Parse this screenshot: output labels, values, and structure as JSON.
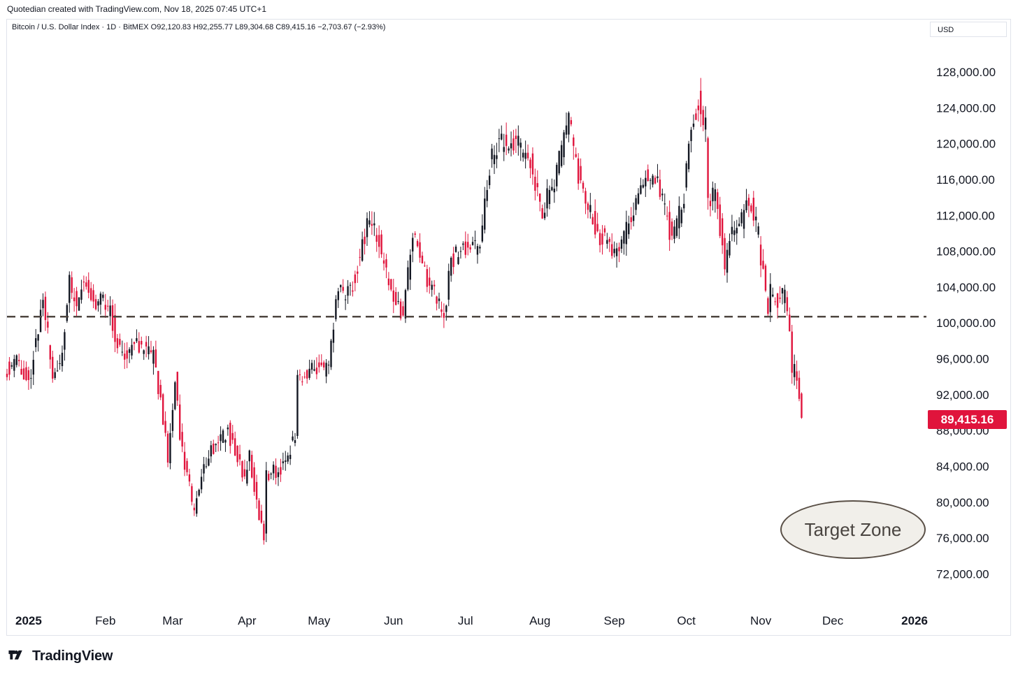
{
  "header": {
    "credit": "Quotedian created with TradingView.com, Nov 18, 2025 07:45 UTC+1",
    "legend": "Bitcoin / U.S. Dollar Index · 1D · BitMEX  O92,120.83  H92,255.77  L89,304.68  C89,415.16  −2,703.67 (−2.93%)"
  },
  "currency_button": "USD",
  "last_price_label": "89,415.16",
  "annotation": {
    "text": "Target Zone"
  },
  "brand": {
    "name": "TradingView"
  },
  "colors": {
    "up": "#131722",
    "down": "#e0143c",
    "level_line": "#4e4640",
    "axis_text": "#131722"
  },
  "chart_data": {
    "type": "candlestick",
    "title": "Bitcoin / U.S. Dollar Index",
    "interval": "1D",
    "exchange": "BitMEX",
    "ohlc_last": {
      "open": 92120.83,
      "high": 92255.77,
      "low": 89304.68,
      "close": 89415.16,
      "change": -2703.67,
      "change_pct": -2.93
    },
    "ylim": [
      68600,
      131200
    ],
    "y_ticks": [
      72000,
      76000,
      80000,
      84000,
      88000,
      92000,
      96000,
      100000,
      104000,
      108000,
      112000,
      116000,
      120000,
      124000,
      128000
    ],
    "y_tick_labels": [
      "72,000.00",
      "76,000.00",
      "80,000.00",
      "84,000.00",
      "88,000.00",
      "92,000.00",
      "96,000.00",
      "100,000.00",
      "104,000.00",
      "108,000.00",
      "112,000.00",
      "116,000.00",
      "120,000.00",
      "124,000.00",
      "128,000.00"
    ],
    "x_labels": [
      {
        "date": "2025-01-01",
        "label": "2025"
      },
      {
        "date": "2025-02-01",
        "label": "Feb"
      },
      {
        "date": "2025-03-01",
        "label": "Mar"
      },
      {
        "date": "2025-04-01",
        "label": "Apr"
      },
      {
        "date": "2025-05-01",
        "label": "May"
      },
      {
        "date": "2025-06-01",
        "label": "Jun"
      },
      {
        "date": "2025-07-01",
        "label": "Jul"
      },
      {
        "date": "2025-08-01",
        "label": "Aug"
      },
      {
        "date": "2025-09-01",
        "label": "Sep"
      },
      {
        "date": "2025-10-01",
        "label": "Oct"
      },
      {
        "date": "2025-11-01",
        "label": "Nov"
      },
      {
        "date": "2025-12-01",
        "label": "Dec"
      },
      {
        "date": "2026-01-01",
        "label": "2026"
      }
    ],
    "x_start": "2024-12-22",
    "x_end": "2026-01-09",
    "horizontal_level": 100700,
    "closes": [
      {
        "date": "2024-12-22",
        "close": 95000
      },
      {
        "date": "2024-12-26",
        "close": 95700
      },
      {
        "date": "2024-12-31",
        "close": 93400
      },
      {
        "date": "2025-01-06",
        "close": 102200
      },
      {
        "date": "2025-01-10",
        "close": 94600
      },
      {
        "date": "2025-01-13",
        "close": 94500
      },
      {
        "date": "2025-01-17",
        "close": 104300
      },
      {
        "date": "2025-01-20",
        "close": 102400
      },
      {
        "date": "2025-01-24",
        "close": 104800
      },
      {
        "date": "2025-01-27",
        "close": 102100
      },
      {
        "date": "2025-01-31",
        "close": 102400
      },
      {
        "date": "2025-02-03",
        "close": 101400
      },
      {
        "date": "2025-02-07",
        "close": 96500
      },
      {
        "date": "2025-02-14",
        "close": 97500
      },
      {
        "date": "2025-02-21",
        "close": 96200
      },
      {
        "date": "2025-02-24",
        "close": 91500
      },
      {
        "date": "2025-02-27",
        "close": 84700
      },
      {
        "date": "2025-03-02",
        "close": 94200
      },
      {
        "date": "2025-03-04",
        "close": 87200
      },
      {
        "date": "2025-03-10",
        "close": 78600
      },
      {
        "date": "2025-03-14",
        "close": 84300
      },
      {
        "date": "2025-03-19",
        "close": 86800
      },
      {
        "date": "2025-03-24",
        "close": 88000
      },
      {
        "date": "2025-03-31",
        "close": 82500
      },
      {
        "date": "2025-04-02",
        "close": 85200
      },
      {
        "date": "2025-04-06",
        "close": 78400
      },
      {
        "date": "2025-04-08",
        "close": 76300
      },
      {
        "date": "2025-04-09",
        "close": 83300
      },
      {
        "date": "2025-04-15",
        "close": 83600
      },
      {
        "date": "2025-04-21",
        "close": 87500
      },
      {
        "date": "2025-04-22",
        "close": 93400
      },
      {
        "date": "2025-04-28",
        "close": 95000
      },
      {
        "date": "2025-05-05",
        "close": 94700
      },
      {
        "date": "2025-05-08",
        "close": 103000
      },
      {
        "date": "2025-05-14",
        "close": 103500
      },
      {
        "date": "2025-05-22",
        "close": 111600
      },
      {
        "date": "2025-05-26",
        "close": 109300
      },
      {
        "date": "2025-05-30",
        "close": 103900
      },
      {
        "date": "2025-06-05",
        "close": 101000
      },
      {
        "date": "2025-06-09",
        "close": 110000
      },
      {
        "date": "2025-06-13",
        "close": 106000
      },
      {
        "date": "2025-06-17",
        "close": 104200
      },
      {
        "date": "2025-06-22",
        "close": 100900
      },
      {
        "date": "2025-06-25",
        "close": 107100
      },
      {
        "date": "2025-07-02",
        "close": 108800
      },
      {
        "date": "2025-07-07",
        "close": 108100
      },
      {
        "date": "2025-07-11",
        "close": 117600
      },
      {
        "date": "2025-07-14",
        "close": 119800
      },
      {
        "date": "2025-07-22",
        "close": 119900
      },
      {
        "date": "2025-07-28",
        "close": 118100
      },
      {
        "date": "2025-08-02",
        "close": 112600
      },
      {
        "date": "2025-08-08",
        "close": 116600
      },
      {
        "date": "2025-08-13",
        "close": 123300
      },
      {
        "date": "2025-08-16",
        "close": 117400
      },
      {
        "date": "2025-08-25",
        "close": 110100
      },
      {
        "date": "2025-08-31",
        "close": 108200
      },
      {
        "date": "2025-09-06",
        "close": 110200
      },
      {
        "date": "2025-09-13",
        "close": 115900
      },
      {
        "date": "2025-09-17",
        "close": 116800
      },
      {
        "date": "2025-09-22",
        "close": 112700
      },
      {
        "date": "2025-09-25",
        "close": 109000
      },
      {
        "date": "2025-09-30",
        "close": 114000
      },
      {
        "date": "2025-10-03",
        "close": 122200
      },
      {
        "date": "2025-10-06",
        "close": 124700
      },
      {
        "date": "2025-10-09",
        "close": 121600
      },
      {
        "date": "2025-10-10",
        "close": 113100
      },
      {
        "date": "2025-10-13",
        "close": 115200
      },
      {
        "date": "2025-10-17",
        "close": 106400
      },
      {
        "date": "2025-10-20",
        "close": 110500
      },
      {
        "date": "2025-10-24",
        "close": 111300
      },
      {
        "date": "2025-10-27",
        "close": 114100
      },
      {
        "date": "2025-10-31",
        "close": 109600
      },
      {
        "date": "2025-11-04",
        "close": 101200
      },
      {
        "date": "2025-11-05",
        "close": 103900
      },
      {
        "date": "2025-11-07",
        "close": 102400
      },
      {
        "date": "2025-11-11",
        "close": 103000
      },
      {
        "date": "2025-11-13",
        "close": 99600
      },
      {
        "date": "2025-11-14",
        "close": 94600
      },
      {
        "date": "2025-11-16",
        "close": 94200
      },
      {
        "date": "2025-11-17",
        "close": 92100
      },
      {
        "date": "2025-11-18",
        "close": 89415.16
      }
    ]
  }
}
